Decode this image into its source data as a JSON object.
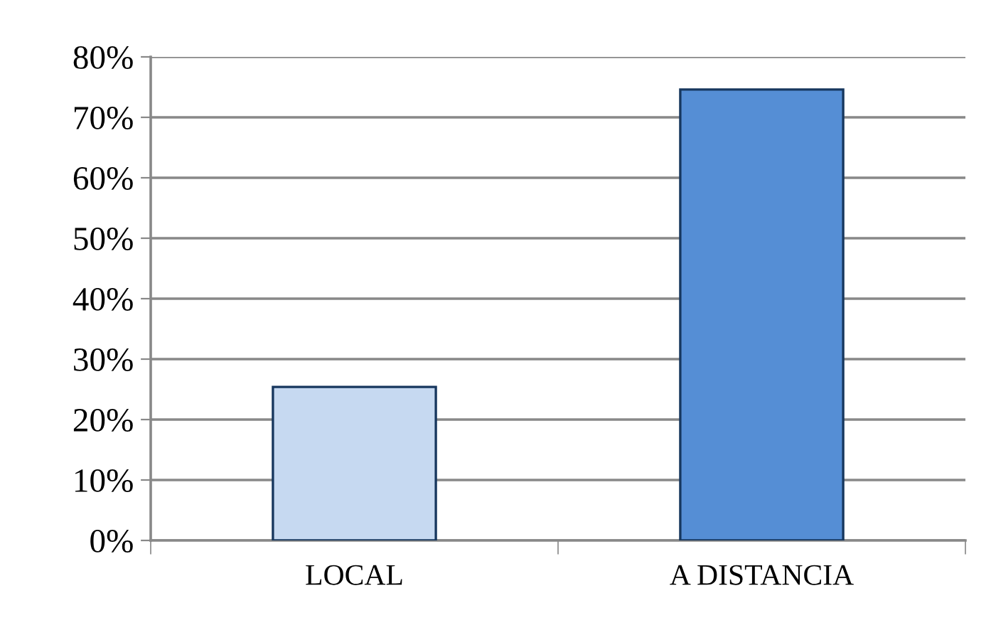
{
  "chart_data": {
    "type": "bar",
    "categories": [
      "LOCAL",
      "A DISTANCIA"
    ],
    "values": [
      25.4,
      74.6
    ],
    "colors": [
      "#c6d9f1",
      "#558ed5"
    ],
    "ylim": [
      0,
      80
    ],
    "yticks": [
      {
        "value": 0,
        "label": "0%"
      },
      {
        "value": 10,
        "label": "10%"
      },
      {
        "value": 20,
        "label": "20%"
      },
      {
        "value": 30,
        "label": "30%"
      },
      {
        "value": 40,
        "label": "40%"
      },
      {
        "value": 50,
        "label": "50%"
      },
      {
        "value": 60,
        "label": "60%"
      },
      {
        "value": 70,
        "label": "70%"
      },
      {
        "value": 80,
        "label": "80%"
      }
    ],
    "grid": "y"
  }
}
